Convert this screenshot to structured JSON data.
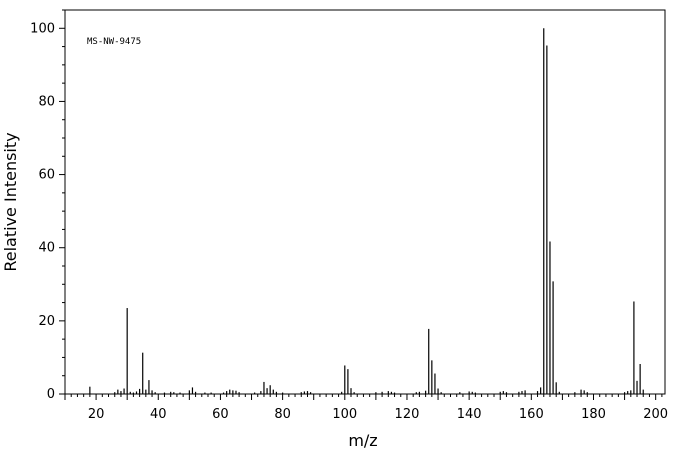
{
  "chart_data": {
    "type": "bar",
    "title": "",
    "annotation": "MS-NW-9475",
    "xlabel": "m/z",
    "ylabel": "Relative Intensity",
    "xlim": [
      10,
      203
    ],
    "ylim": [
      0,
      105
    ],
    "xticks": [
      20,
      40,
      60,
      80,
      100,
      120,
      140,
      160,
      180,
      200
    ],
    "yticks": [
      0,
      20,
      40,
      60,
      80,
      100
    ],
    "grid": false,
    "legend": "none",
    "series": [
      {
        "peaks": [
          [
            18,
            2
          ],
          [
            26,
            0.5
          ],
          [
            27,
            1.2
          ],
          [
            28,
            0.8
          ],
          [
            29,
            1.5
          ],
          [
            30,
            23.5
          ],
          [
            31,
            0.6
          ],
          [
            32,
            0.4
          ],
          [
            33,
            0.7
          ],
          [
            34,
            1.4
          ],
          [
            35,
            11.3
          ],
          [
            36,
            1.2
          ],
          [
            37,
            3.8
          ],
          [
            38,
            1.0
          ],
          [
            39,
            0.5
          ],
          [
            42,
            0.4
          ],
          [
            44,
            0.6
          ],
          [
            45,
            0.5
          ],
          [
            47,
            0.4
          ],
          [
            50,
            1.0
          ],
          [
            51,
            1.8
          ],
          [
            52,
            0.6
          ],
          [
            55,
            0.4
          ],
          [
            57,
            0.4
          ],
          [
            61,
            0.4
          ],
          [
            62,
            0.8
          ],
          [
            63,
            1.2
          ],
          [
            64,
            1.0
          ],
          [
            65,
            0.9
          ],
          [
            66,
            0.5
          ],
          [
            71,
            0.4
          ],
          [
            73,
            0.8
          ],
          [
            74,
            3.3
          ],
          [
            75,
            1.6
          ],
          [
            76,
            2.4
          ],
          [
            77,
            1.2
          ],
          [
            78,
            0.6
          ],
          [
            80,
            0.4
          ],
          [
            86,
            0.5
          ],
          [
            87,
            0.7
          ],
          [
            88,
            0.8
          ],
          [
            89,
            0.5
          ],
          [
            99,
            0.6
          ],
          [
            100,
            7.8
          ],
          [
            101,
            6.8
          ],
          [
            102,
            1.6
          ],
          [
            103,
            0.5
          ],
          [
            110,
            0.5
          ],
          [
            112,
            0.6
          ],
          [
            114,
            0.8
          ],
          [
            115,
            0.6
          ],
          [
            116,
            0.4
          ],
          [
            123,
            0.5
          ],
          [
            124,
            0.6
          ],
          [
            126,
            0.9
          ],
          [
            127,
            17.8
          ],
          [
            128,
            9.2
          ],
          [
            129,
            5.6
          ],
          [
            130,
            1.5
          ],
          [
            131,
            0.5
          ],
          [
            137,
            0.5
          ],
          [
            140,
            0.7
          ],
          [
            141,
            0.6
          ],
          [
            142,
            0.4
          ],
          [
            150,
            0.6
          ],
          [
            151,
            0.8
          ],
          [
            152,
            0.5
          ],
          [
            156,
            0.6
          ],
          [
            157,
            0.8
          ],
          [
            158,
            1.0
          ],
          [
            162,
            0.8
          ],
          [
            163,
            1.8
          ],
          [
            164,
            100
          ],
          [
            165,
            95.3
          ],
          [
            166,
            41.7
          ],
          [
            167,
            30.8
          ],
          [
            168,
            3.2
          ],
          [
            169,
            0.6
          ],
          [
            174,
            0.5
          ],
          [
            176,
            1.2
          ],
          [
            177,
            1.0
          ],
          [
            178,
            0.5
          ],
          [
            190,
            0.5
          ],
          [
            191,
            0.8
          ],
          [
            192,
            1.0
          ],
          [
            193,
            25.3
          ],
          [
            194,
            3.6
          ],
          [
            195,
            8.2
          ],
          [
            196,
            1.2
          ]
        ]
      }
    ]
  }
}
